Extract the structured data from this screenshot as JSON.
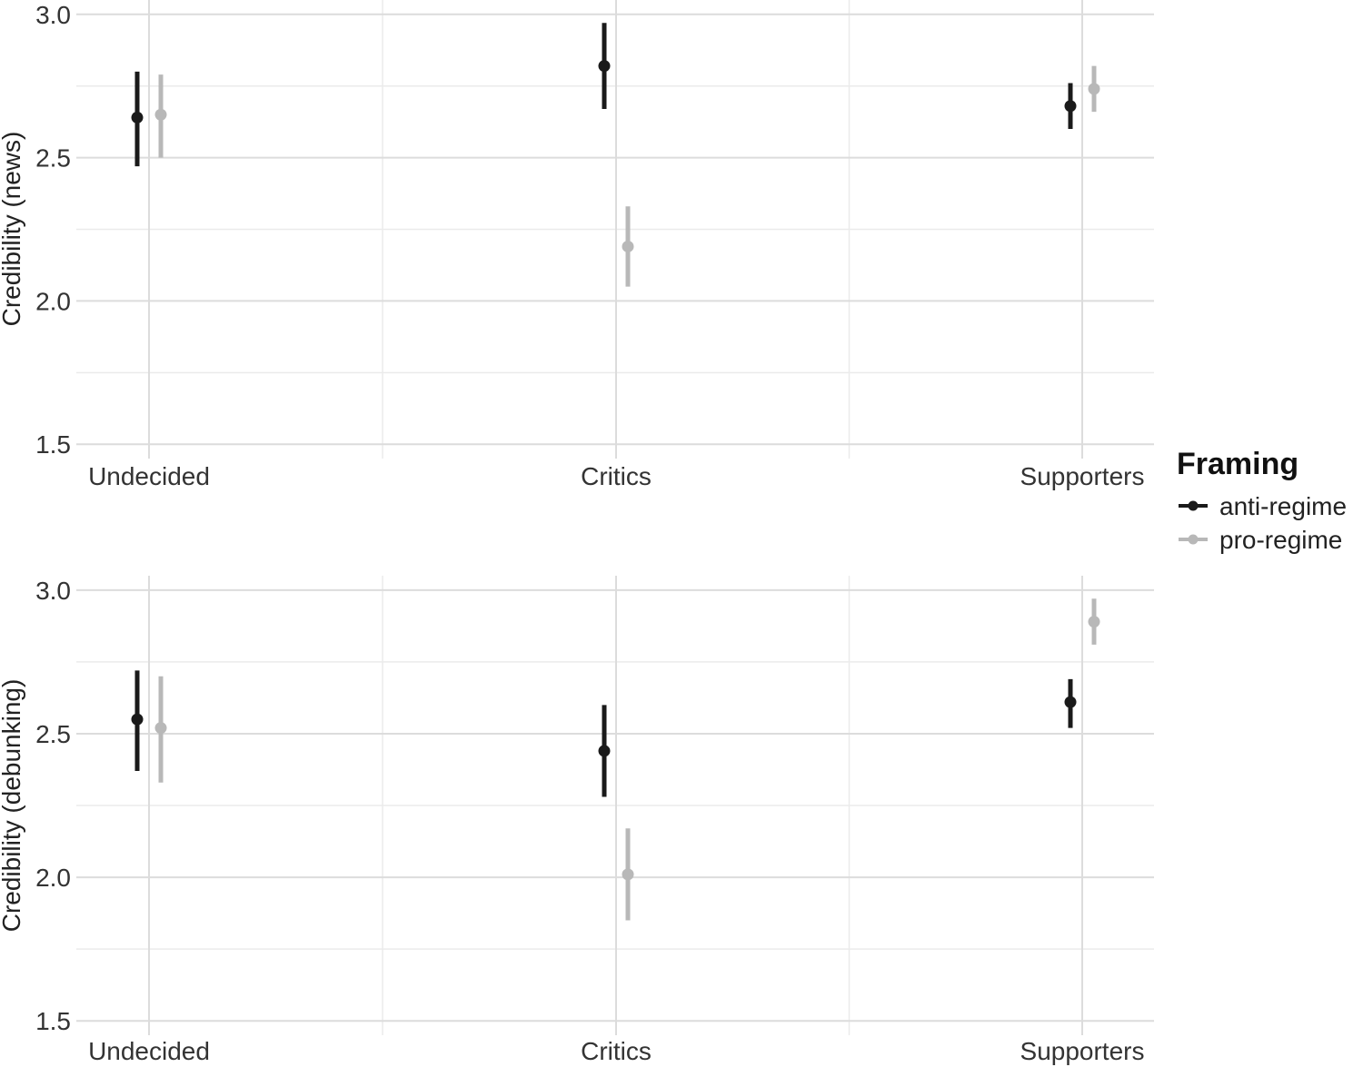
{
  "legend": {
    "title": "Framing",
    "entries": [
      {
        "label": "anti-regime",
        "color": "#1a1a1a"
      },
      {
        "label": "pro-regime",
        "color": "#b8b8b8"
      }
    ]
  },
  "chart_data": [
    {
      "type": "scatter",
      "ylabel": "Credibility (news)",
      "xlabel": "",
      "categories": [
        "Undecided",
        "Critics",
        "Supporters"
      ],
      "ylim": [
        1.45,
        3.05
      ],
      "yticks": [
        "1.5",
        "2.0",
        "2.5",
        "3.0"
      ],
      "series": [
        {
          "name": "anti-regime",
          "color": "#1a1a1a",
          "values": [
            2.64,
            2.82,
            2.68
          ],
          "lower": [
            2.47,
            2.67,
            2.6
          ],
          "upper": [
            2.8,
            2.97,
            2.76
          ]
        },
        {
          "name": "pro-regime",
          "color": "#b8b8b8",
          "values": [
            2.65,
            2.19,
            2.74
          ],
          "lower": [
            2.5,
            2.05,
            2.66
          ],
          "upper": [
            2.79,
            2.33,
            2.82
          ]
        }
      ]
    },
    {
      "type": "scatter",
      "ylabel": "Credibility (debunking)",
      "xlabel": "",
      "categories": [
        "Undecided",
        "Critics",
        "Supporters"
      ],
      "ylim": [
        1.45,
        3.05
      ],
      "yticks": [
        "1.5",
        "2.0",
        "2.5",
        "3.0"
      ],
      "series": [
        {
          "name": "anti-regime",
          "color": "#1a1a1a",
          "values": [
            2.55,
            2.44,
            2.61
          ],
          "lower": [
            2.37,
            2.28,
            2.52
          ],
          "upper": [
            2.72,
            2.6,
            2.69
          ]
        },
        {
          "name": "pro-regime",
          "color": "#b8b8b8",
          "values": [
            2.52,
            2.01,
            2.89
          ],
          "lower": [
            2.33,
            1.85,
            2.81
          ],
          "upper": [
            2.7,
            2.17,
            2.97
          ]
        }
      ]
    }
  ]
}
